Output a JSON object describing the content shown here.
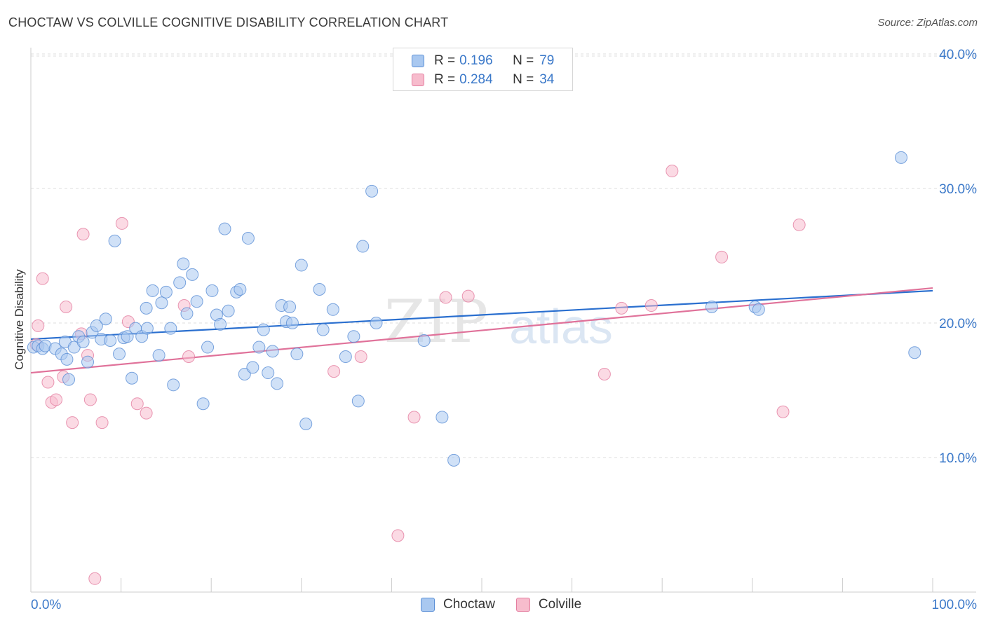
{
  "title": "CHOCTAW VS COLVILLE COGNITIVE DISABILITY CORRELATION CHART",
  "source": "Source: ZipAtlas.com",
  "watermark": "ZIPatlas",
  "legend": {
    "rows": [
      {
        "r_label": "R =",
        "r_value": "0.196",
        "n_label": "N =",
        "n_value": "79"
      },
      {
        "r_label": "R =",
        "r_value": "0.284",
        "n_label": "N =",
        "n_value": "34"
      }
    ]
  },
  "colors": {
    "choctaw_fill": "#a9c8f0",
    "choctaw_stroke": "#5b8fd6",
    "choctaw_line": "#2a6fcf",
    "colville_fill": "#f7bccd",
    "colville_stroke": "#e47ea0",
    "colville_line": "#e0729a",
    "tick_label": "#3a78c9",
    "grid": "#dedede"
  },
  "chart_data": {
    "type": "scatter",
    "title": "CHOCTAW VS COLVILLE COGNITIVE DISABILITY CORRELATION CHART",
    "xlabel": "",
    "ylabel": "Cognitive Disability",
    "xlim": [
      0,
      100
    ],
    "ylim": [
      0,
      42
    ],
    "x_tick_labels": [
      "0.0%",
      "100.0%"
    ],
    "y_ticks": [
      10,
      20,
      30,
      40
    ],
    "y_tick_labels": [
      "10.0%",
      "20.0%",
      "30.0%",
      "40.0%"
    ],
    "grid": true,
    "legend_position": "top-center",
    "series": [
      {
        "name": "Choctaw",
        "r": 0.196,
        "n": 79,
        "trend": {
          "x": [
            0,
            100
          ],
          "y": [
            18.8,
            22.4
          ]
        },
        "points": [
          [
            0.3,
            18.2
          ],
          [
            0.8,
            18.3
          ],
          [
            1.3,
            18.1
          ],
          [
            1.6,
            18.3
          ],
          [
            2.7,
            18.1
          ],
          [
            3.4,
            17.7
          ],
          [
            3.8,
            18.6
          ],
          [
            4.0,
            17.3
          ],
          [
            4.2,
            15.8
          ],
          [
            4.8,
            18.2
          ],
          [
            5.3,
            19.0
          ],
          [
            5.8,
            18.6
          ],
          [
            6.3,
            17.1
          ],
          [
            6.8,
            19.3
          ],
          [
            7.3,
            19.8
          ],
          [
            7.8,
            18.8
          ],
          [
            8.3,
            20.3
          ],
          [
            8.8,
            18.7
          ],
          [
            9.3,
            26.1
          ],
          [
            9.8,
            17.7
          ],
          [
            10.3,
            18.9
          ],
          [
            10.7,
            19.0
          ],
          [
            11.2,
            15.9
          ],
          [
            11.6,
            19.6
          ],
          [
            12.3,
            19.0
          ],
          [
            12.8,
            21.1
          ],
          [
            12.9,
            19.6
          ],
          [
            13.5,
            22.4
          ],
          [
            14.2,
            17.6
          ],
          [
            14.5,
            21.5
          ],
          [
            15.0,
            22.3
          ],
          [
            15.5,
            19.6
          ],
          [
            15.8,
            15.4
          ],
          [
            16.5,
            23.0
          ],
          [
            16.9,
            24.4
          ],
          [
            17.3,
            20.7
          ],
          [
            17.9,
            23.6
          ],
          [
            18.4,
            21.6
          ],
          [
            19.1,
            14.0
          ],
          [
            19.6,
            18.2
          ],
          [
            20.1,
            22.4
          ],
          [
            20.6,
            20.6
          ],
          [
            21.0,
            19.9
          ],
          [
            21.5,
            27.0
          ],
          [
            21.9,
            20.9
          ],
          [
            22.8,
            22.3
          ],
          [
            23.2,
            22.5
          ],
          [
            23.7,
            16.2
          ],
          [
            24.1,
            26.3
          ],
          [
            24.6,
            16.7
          ],
          [
            25.3,
            18.2
          ],
          [
            25.8,
            19.5
          ],
          [
            26.3,
            16.3
          ],
          [
            26.8,
            17.9
          ],
          [
            27.3,
            15.5
          ],
          [
            27.8,
            21.3
          ],
          [
            28.3,
            20.1
          ],
          [
            28.7,
            21.2
          ],
          [
            29.0,
            20.0
          ],
          [
            29.5,
            17.7
          ],
          [
            30.0,
            24.3
          ],
          [
            30.5,
            12.5
          ],
          [
            32.0,
            22.5
          ],
          [
            32.4,
            19.5
          ],
          [
            33.5,
            21.0
          ],
          [
            34.9,
            17.5
          ],
          [
            35.8,
            19.0
          ],
          [
            36.3,
            14.2
          ],
          [
            36.8,
            25.7
          ],
          [
            37.8,
            29.8
          ],
          [
            38.3,
            20.0
          ],
          [
            43.6,
            18.7
          ],
          [
            45.6,
            13.0
          ],
          [
            46.9,
            9.8
          ],
          [
            75.5,
            21.2
          ],
          [
            80.3,
            21.2
          ],
          [
            80.7,
            21.0
          ],
          [
            96.5,
            32.3
          ],
          [
            98.0,
            17.8
          ]
        ]
      },
      {
        "name": "Colville",
        "r": 0.284,
        "n": 34,
        "trend": {
          "x": [
            0,
            100
          ],
          "y": [
            16.3,
            22.6
          ]
        },
        "points": [
          [
            0.6,
            18.4
          ],
          [
            0.8,
            19.8
          ],
          [
            1.3,
            23.3
          ],
          [
            1.9,
            15.6
          ],
          [
            2.3,
            14.1
          ],
          [
            2.8,
            14.3
          ],
          [
            3.6,
            16.0
          ],
          [
            3.9,
            21.2
          ],
          [
            4.6,
            12.6
          ],
          [
            5.6,
            19.2
          ],
          [
            5.8,
            26.6
          ],
          [
            6.3,
            17.6
          ],
          [
            6.6,
            14.3
          ],
          [
            7.1,
            1.0
          ],
          [
            7.9,
            12.6
          ],
          [
            10.1,
            27.4
          ],
          [
            10.8,
            20.1
          ],
          [
            11.8,
            14.0
          ],
          [
            12.8,
            13.3
          ],
          [
            17.0,
            21.3
          ],
          [
            17.5,
            17.5
          ],
          [
            33.6,
            16.4
          ],
          [
            36.6,
            17.5
          ],
          [
            40.7,
            4.2
          ],
          [
            42.5,
            13.0
          ],
          [
            46.0,
            21.9
          ],
          [
            48.5,
            22.0
          ],
          [
            63.6,
            16.2
          ],
          [
            65.5,
            21.1
          ],
          [
            68.8,
            21.3
          ],
          [
            71.1,
            31.3
          ],
          [
            76.6,
            24.9
          ],
          [
            83.4,
            13.4
          ],
          [
            85.2,
            27.3
          ]
        ]
      }
    ]
  }
}
